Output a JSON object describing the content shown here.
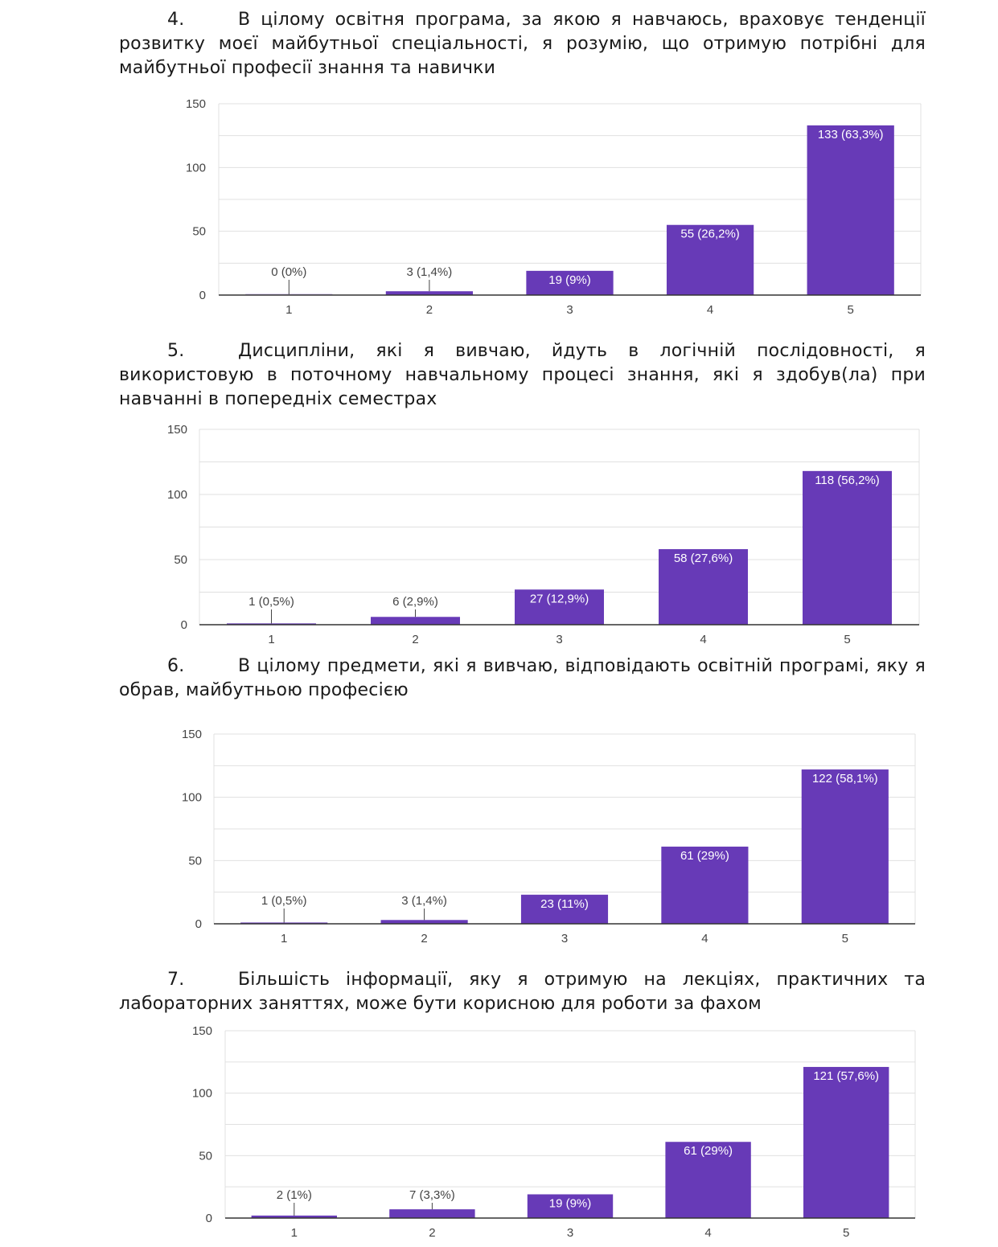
{
  "questions": [
    {
      "number": "4.",
      "text": "В цілому освітня програма, за якою я навчаюсь, враховує тенденції розвитку моєї майбутньої спеціальності, я розумію, що отримую потрібні для майбутньої професії знання та навички"
    },
    {
      "number": "5.",
      "text": "Дисципліни, які я вивчаю, йдуть в логічній послідовності, я використовую в поточному навчальному процесі знання, які я здобув(ла) при навчанні в попередніх семестрах"
    },
    {
      "number": "6.",
      "text": "В цілому предмети, які я вивчаю, відповідають освітній програмі, яку я обрав, майбутньою професією"
    },
    {
      "number": "7.",
      "text": "Більшість інформації, яку я отримую на лекціях, практичних та лабораторних заняттях, може бути корисною для роботи за фахом"
    }
  ],
  "colors": {
    "bar": "#673ab7",
    "grid": "#e0e0e0",
    "axis": "#333333",
    "tick": "#444444",
    "label_dark": "#444444",
    "label_light": "#ffffff"
  },
  "chart_data": [
    {
      "type": "bar",
      "categories": [
        "1",
        "2",
        "3",
        "4",
        "5"
      ],
      "values": [
        0,
        3,
        19,
        55,
        133
      ],
      "data_labels": [
        "0 (0%)",
        "3 (1,4%)",
        "19 (9%)",
        "55 (26,2%)",
        "133 (63,3%)"
      ],
      "yticks": [
        "0",
        "50",
        "100",
        "150"
      ],
      "ylim": [
        0,
        150
      ],
      "grid": true,
      "xlabel": "",
      "ylabel": "",
      "title": ""
    },
    {
      "type": "bar",
      "categories": [
        "1",
        "2",
        "3",
        "4",
        "5"
      ],
      "values": [
        1,
        6,
        27,
        58,
        118
      ],
      "data_labels": [
        "1 (0,5%)",
        "6 (2,9%)",
        "27 (12,9%)",
        "58 (27,6%)",
        "118 (56,2%)"
      ],
      "yticks": [
        "0",
        "50",
        "100",
        "150"
      ],
      "ylim": [
        0,
        150
      ],
      "grid": true,
      "xlabel": "",
      "ylabel": "",
      "title": ""
    },
    {
      "type": "bar",
      "categories": [
        "1",
        "2",
        "3",
        "4",
        "5"
      ],
      "values": [
        1,
        3,
        23,
        61,
        122
      ],
      "data_labels": [
        "1 (0,5%)",
        "3 (1,4%)",
        "23 (11%)",
        "61 (29%)",
        "122 (58,1%)"
      ],
      "yticks": [
        "0",
        "50",
        "100",
        "150"
      ],
      "ylim": [
        0,
        150
      ],
      "grid": true,
      "xlabel": "",
      "ylabel": "",
      "title": ""
    },
    {
      "type": "bar",
      "categories": [
        "1",
        "2",
        "3",
        "4",
        "5"
      ],
      "values": [
        2,
        7,
        19,
        61,
        121
      ],
      "data_labels": [
        "2 (1%)",
        "7 (3,3%)",
        "19 (9%)",
        "61 (29%)",
        "121 (57,6%)"
      ],
      "yticks": [
        "0",
        "50",
        "100",
        "150"
      ],
      "ylim": [
        0,
        150
      ],
      "grid": true,
      "xlabel": "",
      "ylabel": "",
      "title": ""
    }
  ]
}
